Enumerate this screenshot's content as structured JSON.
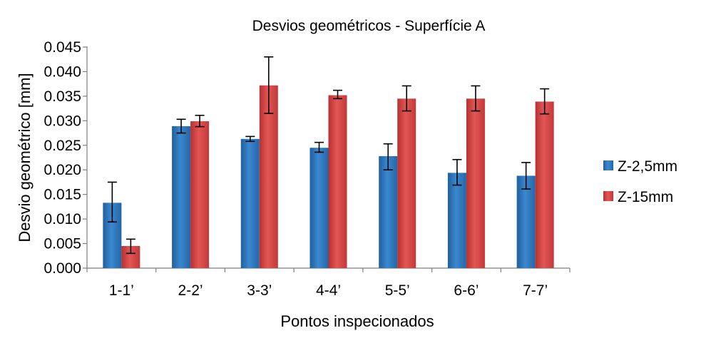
{
  "chart_data": {
    "type": "bar",
    "title": "Desvios geométricos - Superfície A",
    "xlabel": "Pontos inspecionados",
    "ylabel": "Desvio geométrico [mm]",
    "categories": [
      "1-1’",
      "2-2’",
      "3-3’",
      "4-4’",
      "5-5’",
      "6-6’",
      "7-7’"
    ],
    "ylim": [
      0,
      0.045
    ],
    "ytick_step": 0.005,
    "yticks": [
      "0.000",
      "0.005",
      "0.010",
      "0.015",
      "0.020",
      "0.025",
      "0.030",
      "0.035",
      "0.040",
      "0.045"
    ],
    "grid": false,
    "legend_position": "right",
    "series": [
      {
        "name": "Z-2,5mm",
        "color": "#2e75b6",
        "values": [
          0.0133,
          0.0289,
          0.0263,
          0.0245,
          0.0228,
          0.0194,
          0.0188
        ],
        "err_low": [
          0.0094,
          0.0275,
          0.0258,
          0.0236,
          0.02,
          0.0169,
          0.0161
        ],
        "err_high": [
          0.0175,
          0.0303,
          0.0268,
          0.0256,
          0.0253,
          0.0221,
          0.0215
        ]
      },
      {
        "name": "Z-15mm",
        "color": "#d64141",
        "values": [
          0.0045,
          0.0299,
          0.0372,
          0.0352,
          0.0345,
          0.0345,
          0.0339
        ],
        "err_low": [
          0.003,
          0.0288,
          0.0315,
          0.0345,
          0.032,
          0.032,
          0.0314
        ],
        "err_high": [
          0.0059,
          0.0311,
          0.043,
          0.0362,
          0.0371,
          0.0371,
          0.0365
        ]
      }
    ]
  }
}
